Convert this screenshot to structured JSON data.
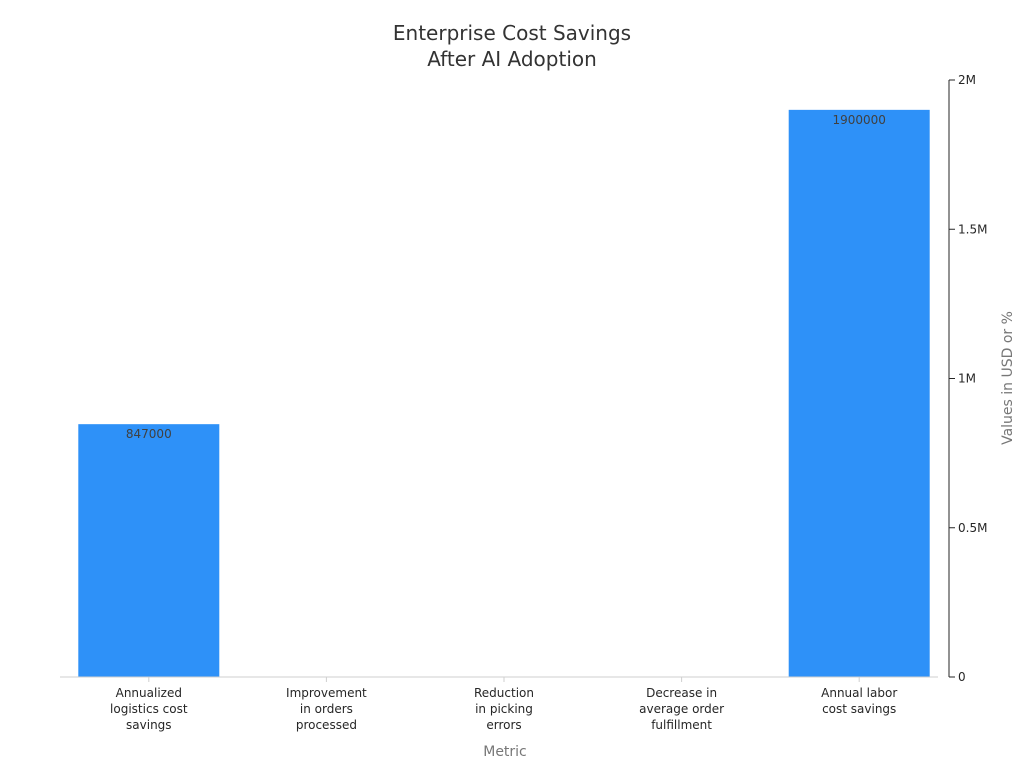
{
  "chart_data": {
    "type": "bar",
    "title_lines": [
      "Enterprise Cost Savings",
      "After AI Adoption"
    ],
    "xlabel": "Metric",
    "ylabel": "Values in USD or %",
    "categories": [
      [
        "Annualized",
        "logistics cost",
        "savings"
      ],
      [
        "Improvement",
        "in orders",
        "processed"
      ],
      [
        "Reduction",
        "in picking",
        "errors"
      ],
      [
        "Decrease in",
        "average order",
        "fulfillment"
      ],
      [
        "Annual labor",
        "cost savings"
      ]
    ],
    "values": [
      847000,
      0,
      0,
      0,
      1900000
    ],
    "value_labels": [
      "847000",
      "",
      "",
      "",
      "1900000"
    ],
    "ylim": [
      0,
      2000000
    ],
    "yticks": [
      0,
      500000,
      1000000,
      1500000,
      2000000
    ],
    "ytick_labels": [
      "0",
      "0.5M",
      "1M",
      "1.5M",
      "2M"
    ],
    "y_axis_side": "right",
    "grid": false,
    "bar_color": "#2e91f8"
  }
}
